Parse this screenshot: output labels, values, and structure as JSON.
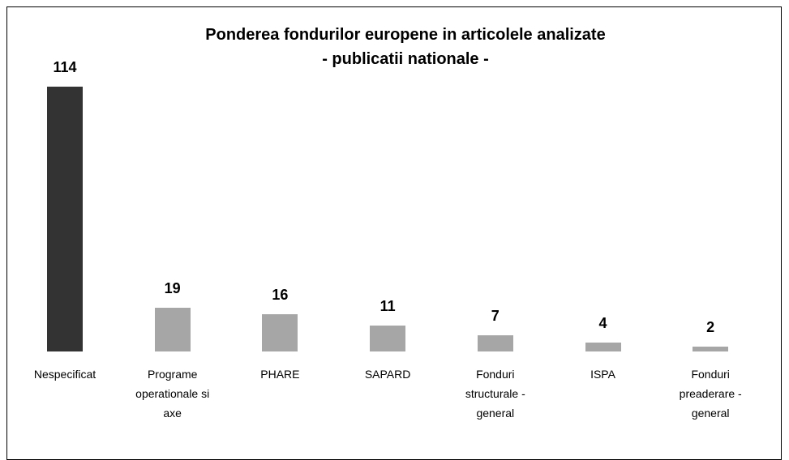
{
  "chart_data": {
    "type": "bar",
    "title": "Ponderea fondurilor europene in articolele analizate",
    "subtitle": "- publicatii nationale -",
    "categories": [
      "Nespecificat",
      "Programe operationale si axe",
      "PHARE",
      "SAPARD",
      "Fonduri structurale - general",
      "ISPA",
      "Fonduri preaderare - general"
    ],
    "values": [
      114,
      19,
      16,
      11,
      7,
      4,
      2
    ],
    "colors": [
      "#333333",
      "#a6a6a6",
      "#a6a6a6",
      "#a6a6a6",
      "#a6a6a6",
      "#a6a6a6",
      "#a6a6a6"
    ]
  }
}
